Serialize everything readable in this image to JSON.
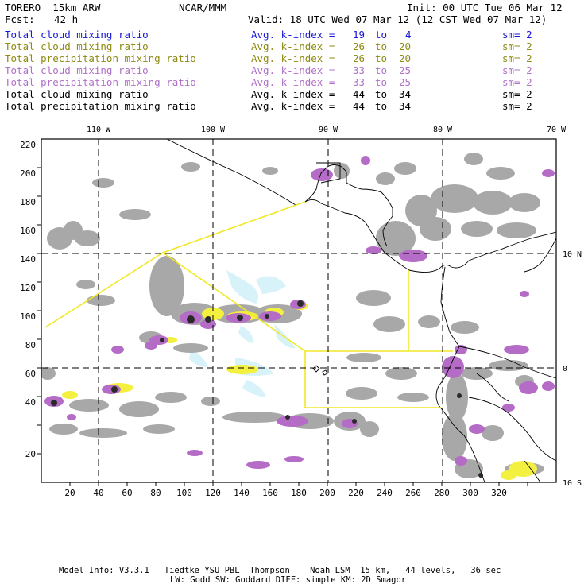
{
  "header": {
    "model": "TORERO  15km ARW",
    "center": "NCAR/MMM",
    "init": "Init: 00 UTC Tue 06 Mar 12",
    "fcst_label": "Fcst:",
    "fcst_value": "42 h",
    "valid": "Valid: 18 UTC Wed 07 Mar 12 (12 CST Wed 07 Mar 12)"
  },
  "legend": [
    {
      "field": "Total cloud mixing ratio",
      "kindex": "Avg. k-index =",
      "from": "19",
      "to_word": "to",
      "to": "4",
      "sm": "sm= 2",
      "color": "#1818d8"
    },
    {
      "field": "Total cloud mixing ratio",
      "kindex": "Avg. k-index =",
      "from": "26",
      "to_word": "to",
      "to": "20",
      "sm": "sm= 2",
      "color": "#8c8a10"
    },
    {
      "field": "Total precipitation mixing ratio",
      "kindex": "Avg. k-index =",
      "from": "26",
      "to_word": "to",
      "to": "20",
      "sm": "sm= 2",
      "color": "#8c8a10"
    },
    {
      "field": "Total cloud mixing ratio",
      "kindex": "Avg. k-index =",
      "from": "33",
      "to_word": "to",
      "to": "25",
      "sm": "sm= 2",
      "color": "#b070c8"
    },
    {
      "field": "Total precipitation mixing ratio",
      "kindex": "Avg. k-index =",
      "from": "33",
      "to_word": "to",
      "to": "25",
      "sm": "sm= 2",
      "color": "#b070c8"
    },
    {
      "field": "Total cloud mixing ratio",
      "kindex": "Avg. k-index =",
      "from": "44",
      "to_word": "to",
      "to": "34",
      "sm": "sm= 2",
      "color": "#000000"
    },
    {
      "field": "Total precipitation mixing ratio",
      "kindex": "Avg. k-index =",
      "from": "44",
      "to_word": "to",
      "to": "34",
      "sm": "sm= 2",
      "color": "#000000"
    }
  ],
  "map": {
    "lon_labels": [
      "110 W",
      "100 W",
      "90 W",
      "80 W",
      "70 W"
    ],
    "lat_labels": [
      "10 N",
      "0",
      "10 S"
    ],
    "x_ticks": [
      "20",
      "40",
      "60",
      "80",
      "100",
      "120",
      "140",
      "160",
      "180",
      "200",
      "220",
      "240",
      "260",
      "280",
      "300",
      "320"
    ],
    "y_ticks": [
      "220",
      "200",
      "180",
      "160",
      "140",
      "120",
      "100",
      "80",
      "60",
      "40",
      "20"
    ],
    "colors": {
      "cloud_gray": "#a8a8a8",
      "dark_core": "#2a2a2a",
      "purple": "#b46cc6",
      "yellow": "#f4f040",
      "light_cyan": "#d8f2fa",
      "domain_line": "#f0e828",
      "coast": "#000000",
      "grid": "#000000"
    }
  },
  "footer": {
    "line1": "Model Info: V3.3.1   Tiedtke YSU PBL  Thompson    Noah LSM  15 km,   44 levels,   36 sec",
    "line2": "LW: Godd SW: Goddard DIFF: simple KM: 2D Smagor"
  }
}
